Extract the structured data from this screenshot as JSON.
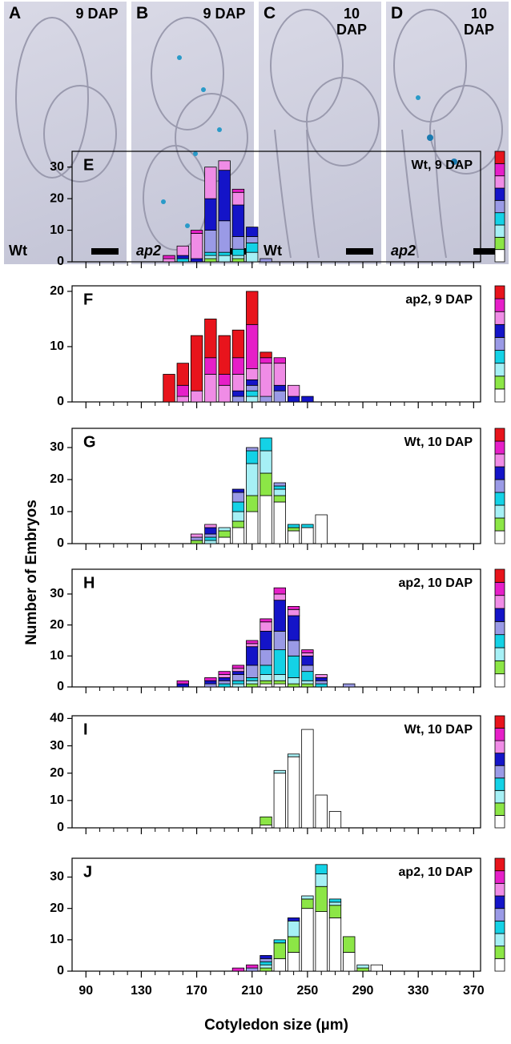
{
  "panels": [
    {
      "letter": "A",
      "stage": "9 DAP",
      "genotype": "Wt"
    },
    {
      "letter": "B",
      "stage": "9 DAP",
      "genotype": "ap2"
    },
    {
      "letter": "C",
      "stage": "10 DAP",
      "genotype": "Wt"
    },
    {
      "letter": "D",
      "stage": "10 DAP",
      "genotype": "ap2"
    }
  ],
  "y_label": "Number of Embryos",
  "chart_data": [
    {
      "type": "bar",
      "stacked": true,
      "letter": "E",
      "label": "Wt, 9 DAP",
      "x": [
        150,
        160,
        170,
        180,
        190,
        200,
        210,
        220
      ],
      "xlim": [
        80,
        375
      ],
      "xticks": [
        90,
        130,
        170,
        210,
        250,
        290,
        330,
        370
      ],
      "ylim": [
        0,
        35
      ],
      "yticks": [
        0,
        10,
        20,
        30
      ],
      "series": [
        {
          "color": "#ffffff",
          "values": [
            0,
            0,
            0,
            0,
            0,
            0,
            0,
            0
          ]
        },
        {
          "color": "#8ce646",
          "values": [
            0,
            0,
            0,
            1,
            0,
            1,
            0,
            0
          ]
        },
        {
          "color": "#a6f0f5",
          "values": [
            0,
            0,
            0,
            1,
            2,
            1,
            3,
            0
          ]
        },
        {
          "color": "#14d2e6",
          "values": [
            0,
            1,
            0,
            1,
            1,
            2,
            3,
            0
          ]
        },
        {
          "color": "#9a9ae6",
          "values": [
            0,
            0,
            0,
            7,
            10,
            4,
            2,
            1
          ]
        },
        {
          "color": "#1414c8",
          "values": [
            0,
            1,
            1,
            10,
            16,
            10,
            3,
            0
          ]
        },
        {
          "color": "#f08ce6",
          "values": [
            1,
            3,
            8,
            10,
            3,
            4,
            0,
            0
          ]
        },
        {
          "color": "#e61fc8",
          "values": [
            1,
            0,
            1,
            0,
            0,
            1,
            0,
            0
          ]
        },
        {
          "color": "#e8141c",
          "values": [
            0,
            0,
            0,
            0,
            0,
            0,
            0,
            0
          ]
        }
      ]
    },
    {
      "type": "bar",
      "stacked": true,
      "letter": "F",
      "label": "ap2, 9 DAP",
      "x": [
        150,
        160,
        170,
        180,
        190,
        200,
        210,
        220,
        230,
        240,
        250
      ],
      "xlim": [
        80,
        375
      ],
      "xticks": [
        90,
        130,
        170,
        210,
        250,
        290,
        330,
        370
      ],
      "ylim": [
        0,
        21
      ],
      "yticks": [
        0,
        10,
        20
      ],
      "series": [
        {
          "color": "#ffffff",
          "values": [
            0,
            0,
            0,
            0,
            0,
            0,
            0,
            0,
            0,
            0,
            0
          ]
        },
        {
          "color": "#8ce646",
          "values": [
            0,
            0,
            0,
            0,
            0,
            0,
            0,
            0,
            0,
            0,
            0
          ]
        },
        {
          "color": "#a6f0f5",
          "values": [
            0,
            0,
            0,
            0,
            0,
            0,
            1,
            0,
            0,
            0,
            0
          ]
        },
        {
          "color": "#14d2e6",
          "values": [
            0,
            0,
            0,
            0,
            0,
            0,
            1,
            0,
            0,
            0,
            0
          ]
        },
        {
          "color": "#9a9ae6",
          "values": [
            0,
            0,
            0,
            0,
            0,
            1,
            1,
            1,
            2,
            0,
            0
          ]
        },
        {
          "color": "#1414c8",
          "values": [
            0,
            0,
            0,
            0,
            0,
            1,
            1,
            0,
            1,
            1,
            1
          ]
        },
        {
          "color": "#f08ce6",
          "values": [
            0,
            1,
            2,
            5,
            3,
            3,
            2,
            6,
            4,
            2,
            0
          ]
        },
        {
          "color": "#e61fc8",
          "values": [
            0,
            2,
            0,
            3,
            2,
            3,
            8,
            1,
            1,
            0,
            0
          ]
        },
        {
          "color": "#e8141c",
          "values": [
            5,
            4,
            10,
            7,
            7,
            5,
            6,
            1,
            0,
            0,
            0
          ]
        }
      ]
    },
    {
      "type": "bar",
      "stacked": true,
      "letter": "G",
      "label": "Wt, 10 DAP",
      "x": [
        170,
        180,
        190,
        200,
        210,
        220,
        230,
        240,
        250,
        260
      ],
      "xlim": [
        80,
        375
      ],
      "xticks": [
        90,
        130,
        170,
        210,
        250,
        290,
        330,
        370
      ],
      "ylim": [
        0,
        36
      ],
      "yticks": [
        0,
        10,
        20,
        30
      ],
      "series": [
        {
          "color": "#ffffff",
          "values": [
            0,
            0,
            2,
            5,
            10,
            15,
            13,
            4,
            5,
            9
          ]
        },
        {
          "color": "#8ce646",
          "values": [
            1,
            0,
            2,
            2,
            5,
            7,
            2,
            1,
            0,
            0
          ]
        },
        {
          "color": "#a6f0f5",
          "values": [
            0,
            1,
            1,
            3,
            10,
            7,
            2,
            0,
            0,
            0
          ]
        },
        {
          "color": "#14d2e6",
          "values": [
            0,
            1,
            0,
            3,
            4,
            4,
            1,
            1,
            1,
            0
          ]
        },
        {
          "color": "#9a9ae6",
          "values": [
            1,
            1,
            0,
            3,
            1,
            0,
            1,
            0,
            0,
            0
          ]
        },
        {
          "color": "#1414c8",
          "values": [
            0,
            2,
            0,
            1,
            0,
            0,
            0,
            0,
            0,
            0
          ]
        },
        {
          "color": "#f08ce6",
          "values": [
            1,
            1,
            0,
            0,
            0,
            0,
            0,
            0,
            0,
            0
          ]
        },
        {
          "color": "#e61fc8",
          "values": [
            0,
            0,
            0,
            0,
            0,
            0,
            0,
            0,
            0,
            0
          ]
        },
        {
          "color": "#e8141c",
          "values": [
            0,
            0,
            0,
            0,
            0,
            0,
            0,
            0,
            0,
            0
          ]
        }
      ]
    },
    {
      "type": "bar",
      "stacked": true,
      "letter": "H",
      "label": "ap2, 10 DAP",
      "x": [
        160,
        180,
        190,
        200,
        210,
        220,
        230,
        240,
        250,
        260,
        280
      ],
      "xlim": [
        80,
        375
      ],
      "xticks": [
        90,
        130,
        170,
        210,
        250,
        290,
        330,
        370
      ],
      "ylim": [
        0,
        38
      ],
      "yticks": [
        0,
        10,
        20,
        30
      ],
      "series": [
        {
          "color": "#ffffff",
          "values": [
            0,
            0,
            0,
            0,
            0,
            1,
            1,
            0,
            0,
            0,
            0
          ]
        },
        {
          "color": "#8ce646",
          "values": [
            0,
            0,
            0,
            0,
            1,
            1,
            1,
            1,
            1,
            0,
            0
          ]
        },
        {
          "color": "#a6f0f5",
          "values": [
            0,
            0,
            0,
            1,
            1,
            2,
            2,
            2,
            1,
            0,
            0
          ]
        },
        {
          "color": "#14d2e6",
          "values": [
            0,
            0,
            1,
            1,
            1,
            3,
            8,
            7,
            3,
            1,
            0
          ]
        },
        {
          "color": "#9a9ae6",
          "values": [
            0,
            1,
            1,
            2,
            4,
            5,
            6,
            5,
            2,
            1,
            1
          ]
        },
        {
          "color": "#1414c8",
          "values": [
            1,
            1,
            1,
            1,
            6,
            6,
            10,
            8,
            3,
            1,
            0
          ]
        },
        {
          "color": "#f08ce6",
          "values": [
            0,
            0,
            1,
            1,
            1,
            3,
            2,
            2,
            1,
            1,
            0
          ]
        },
        {
          "color": "#e61fc8",
          "values": [
            1,
            1,
            1,
            1,
            1,
            1,
            2,
            1,
            1,
            0,
            0
          ]
        },
        {
          "color": "#e8141c",
          "values": [
            0,
            0,
            0,
            0,
            0,
            0,
            0,
            0,
            0,
            0,
            0
          ]
        }
      ]
    },
    {
      "type": "bar",
      "stacked": true,
      "letter": "I",
      "label": "Wt, 10 DAP",
      "x": [
        220,
        230,
        240,
        250,
        260,
        270
      ],
      "xlim": [
        80,
        375
      ],
      "xticks": [
        90,
        130,
        170,
        210,
        250,
        290,
        330,
        370
      ],
      "ylim": [
        0,
        41
      ],
      "yticks": [
        0,
        10,
        20,
        30,
        40
      ],
      "series": [
        {
          "color": "#ffffff",
          "values": [
            1,
            20,
            26,
            36,
            12,
            6
          ]
        },
        {
          "color": "#8ce646",
          "values": [
            3,
            0,
            0,
            0,
            0,
            0
          ]
        },
        {
          "color": "#a6f0f5",
          "values": [
            0,
            1,
            1,
            0,
            0,
            0
          ]
        },
        {
          "color": "#14d2e6",
          "values": [
            0,
            0,
            0,
            0,
            0,
            0
          ]
        },
        {
          "color": "#9a9ae6",
          "values": [
            0,
            0,
            0,
            0,
            0,
            0
          ]
        },
        {
          "color": "#1414c8",
          "values": [
            0,
            0,
            0,
            0,
            0,
            0
          ]
        },
        {
          "color": "#f08ce6",
          "values": [
            0,
            0,
            0,
            0,
            0,
            0
          ]
        },
        {
          "color": "#e61fc8",
          "values": [
            0,
            0,
            0,
            0,
            0,
            0
          ]
        },
        {
          "color": "#e8141c",
          "values": [
            0,
            0,
            0,
            0,
            0,
            0
          ]
        }
      ]
    },
    {
      "type": "bar",
      "stacked": true,
      "letter": "J",
      "label": "ap2, 10 DAP",
      "x": [
        200,
        210,
        220,
        230,
        240,
        250,
        260,
        270,
        280,
        290,
        300
      ],
      "xlim": [
        80,
        375
      ],
      "xticks": [
        90,
        130,
        170,
        210,
        250,
        290,
        330,
        370
      ],
      "ylim": [
        0,
        36
      ],
      "yticks": [
        0,
        10,
        20,
        30
      ],
      "x_label": "Cotyledon size (µm)",
      "series": [
        {
          "color": "#ffffff",
          "values": [
            0,
            0,
            0,
            4,
            6,
            20,
            19,
            17,
            6,
            0,
            2
          ]
        },
        {
          "color": "#8ce646",
          "values": [
            0,
            0,
            1,
            5,
            5,
            3,
            8,
            4,
            5,
            1,
            0
          ]
        },
        {
          "color": "#a6f0f5",
          "values": [
            0,
            0,
            1,
            0,
            5,
            1,
            4,
            1,
            0,
            1,
            0
          ]
        },
        {
          "color": "#14d2e6",
          "values": [
            0,
            0,
            1,
            1,
            0,
            0,
            3,
            1,
            0,
            0,
            0
          ]
        },
        {
          "color": "#9a9ae6",
          "values": [
            0,
            1,
            1,
            0,
            0,
            0,
            0,
            0,
            0,
            0,
            0
          ]
        },
        {
          "color": "#1414c8",
          "values": [
            0,
            0,
            1,
            0,
            1,
            0,
            0,
            0,
            0,
            0,
            0
          ]
        },
        {
          "color": "#f08ce6",
          "values": [
            0,
            0,
            0,
            0,
            0,
            0,
            0,
            0,
            0,
            0,
            0
          ]
        },
        {
          "color": "#e61fc8",
          "values": [
            1,
            1,
            0,
            0,
            0,
            0,
            0,
            0,
            0,
            0,
            0
          ]
        },
        {
          "color": "#e8141c",
          "values": [
            0,
            0,
            0,
            0,
            0,
            0,
            0,
            0,
            0,
            0,
            0
          ]
        }
      ]
    }
  ]
}
